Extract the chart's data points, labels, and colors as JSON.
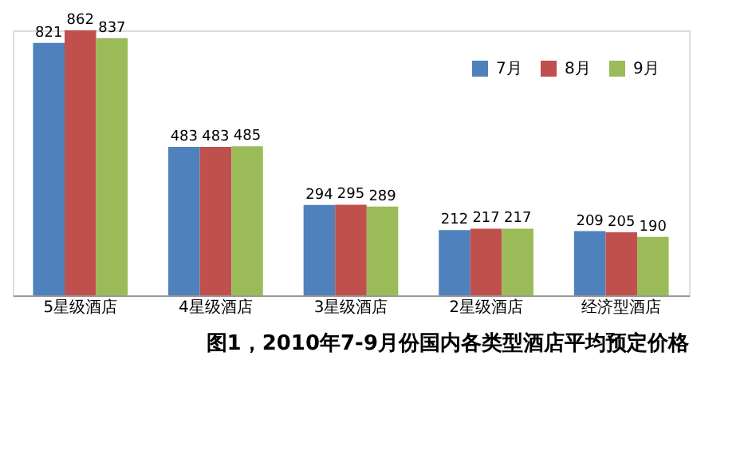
{
  "chart_data": {
    "type": "bar",
    "title": "图1，2010年7-9月份国内各类型酒店平均预定价格",
    "categories": [
      "5星级酒店",
      "4星级酒店",
      "3星级酒店",
      "2星级酒店",
      "经济型酒店"
    ],
    "series": [
      {
        "name": "7月",
        "color": "#4f81bd",
        "values": [
          821,
          483,
          294,
          212,
          209
        ]
      },
      {
        "name": "8月",
        "color": "#c0504d",
        "values": [
          862,
          483,
          295,
          217,
          205
        ]
      },
      {
        "name": "9月",
        "color": "#9bbb59",
        "values": [
          837,
          485,
          289,
          217,
          190
        ]
      }
    ],
    "data_labels": true,
    "legend": "top right",
    "grid": false
  }
}
